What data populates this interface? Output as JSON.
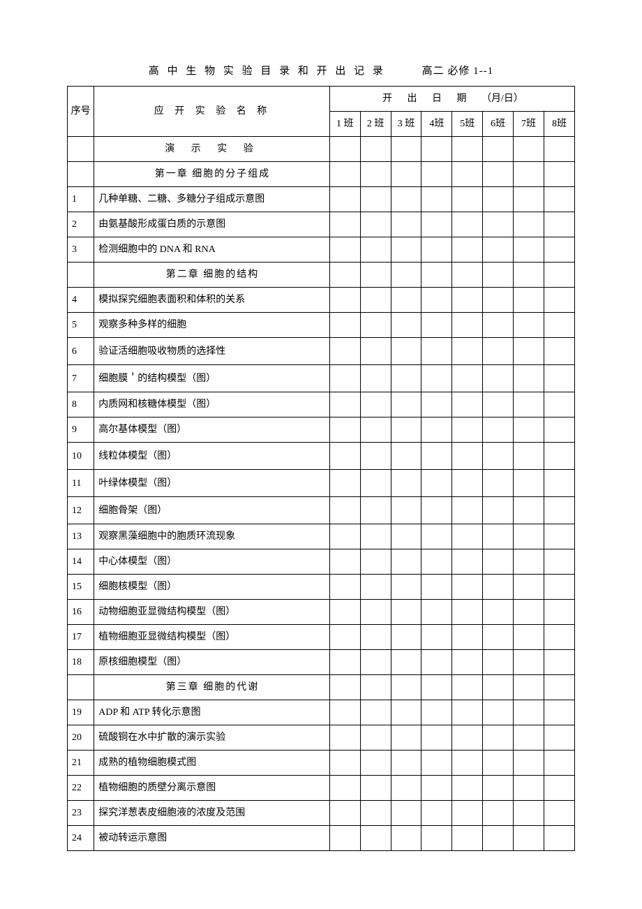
{
  "title": {
    "main": "高 中 生 物 实 验 目 录 和 开 出 记 录",
    "sub": "高二  必修 1--1"
  },
  "headers": {
    "seq": "序号",
    "name": "应 开 实 验 名 称",
    "date_group": "开   出   日    期  （月/日）",
    "classes": [
      "1 班",
      "2 班",
      "3 班",
      "4班",
      "5班",
      "6班",
      "7班",
      "8班"
    ]
  },
  "section_label": "演 示 实 验",
  "rows": [
    {
      "type": "chapter",
      "text": "第一章   细胞的分子组成"
    },
    {
      "type": "item",
      "seq": "1",
      "text": "几种单糖、二糖、多糖分子组成示意图"
    },
    {
      "type": "item",
      "seq": "2",
      "text": "由氨基酸形成蛋白质的示意图"
    },
    {
      "type": "item",
      "seq": "3",
      "text": "检测细胞中的 DNA 和 RNA"
    },
    {
      "type": "chapter",
      "text": "第二章   细胞的结构"
    },
    {
      "type": "item",
      "seq": "4",
      "text": "模拟探究细胞表面积和体积的关系"
    },
    {
      "type": "item",
      "seq": "5",
      "text": "观察多种多样的细胞"
    },
    {
      "type": "item",
      "seq": "6",
      "text": "验证活细胞吸收物质的选择性",
      "tall": true
    },
    {
      "type": "item",
      "seq": "7",
      "text": "细胞膜＇的结构模型（图）",
      "tall": true
    },
    {
      "type": "item",
      "seq": "8",
      "text": "内质网和核糖体模型（图）"
    },
    {
      "type": "item",
      "seq": "9",
      "text": "高尔基体模型（图）"
    },
    {
      "type": "item",
      "seq": "10",
      "text": "线粒体模型（图）",
      "tall": true
    },
    {
      "type": "item",
      "seq": "11",
      "text": "叶绿体模型（图）",
      "tall": true
    },
    {
      "type": "item",
      "seq": "12",
      "text": "细胞骨架（图）",
      "tall": true
    },
    {
      "type": "item",
      "seq": "13",
      "text": "观察黑藻细胞中的胞质环流现象"
    },
    {
      "type": "item",
      "seq": "14",
      "text": "中心体模型（图）"
    },
    {
      "type": "item",
      "seq": "15",
      "text": "细胞核模型（图）"
    },
    {
      "type": "item",
      "seq": "16",
      "text": "动物细胞亚显微结构模型（图）"
    },
    {
      "type": "item",
      "seq": "17",
      "text": "植物细胞亚显微结构模型（图）"
    },
    {
      "type": "item",
      "seq": "18",
      "text": "原核细胞模型（图）"
    },
    {
      "type": "chapter",
      "text": "第三章 细胞的代谢"
    },
    {
      "type": "item",
      "seq": "19",
      "text": "ADP 和 ATP 转化示意图"
    },
    {
      "type": "item",
      "seq": "20",
      "text": "硫酸铜在水中扩散的演示实验"
    },
    {
      "type": "item",
      "seq": "21",
      "text": "成熟的植物细胞模式图"
    },
    {
      "type": "item",
      "seq": "22",
      "text": "植物细胞的质壁分离示意图"
    },
    {
      "type": "item",
      "seq": "23",
      "text": "探究洋葱表皮细胞液的浓度及范围"
    },
    {
      "type": "item",
      "seq": "24",
      "text": "被动转运示意图"
    }
  ],
  "style": {
    "page_bg": "#ffffff",
    "text_color": "#000000",
    "border_color": "#000000",
    "base_fontsize": 14,
    "title_fontsize": 15,
    "num_class_cols": 8
  }
}
